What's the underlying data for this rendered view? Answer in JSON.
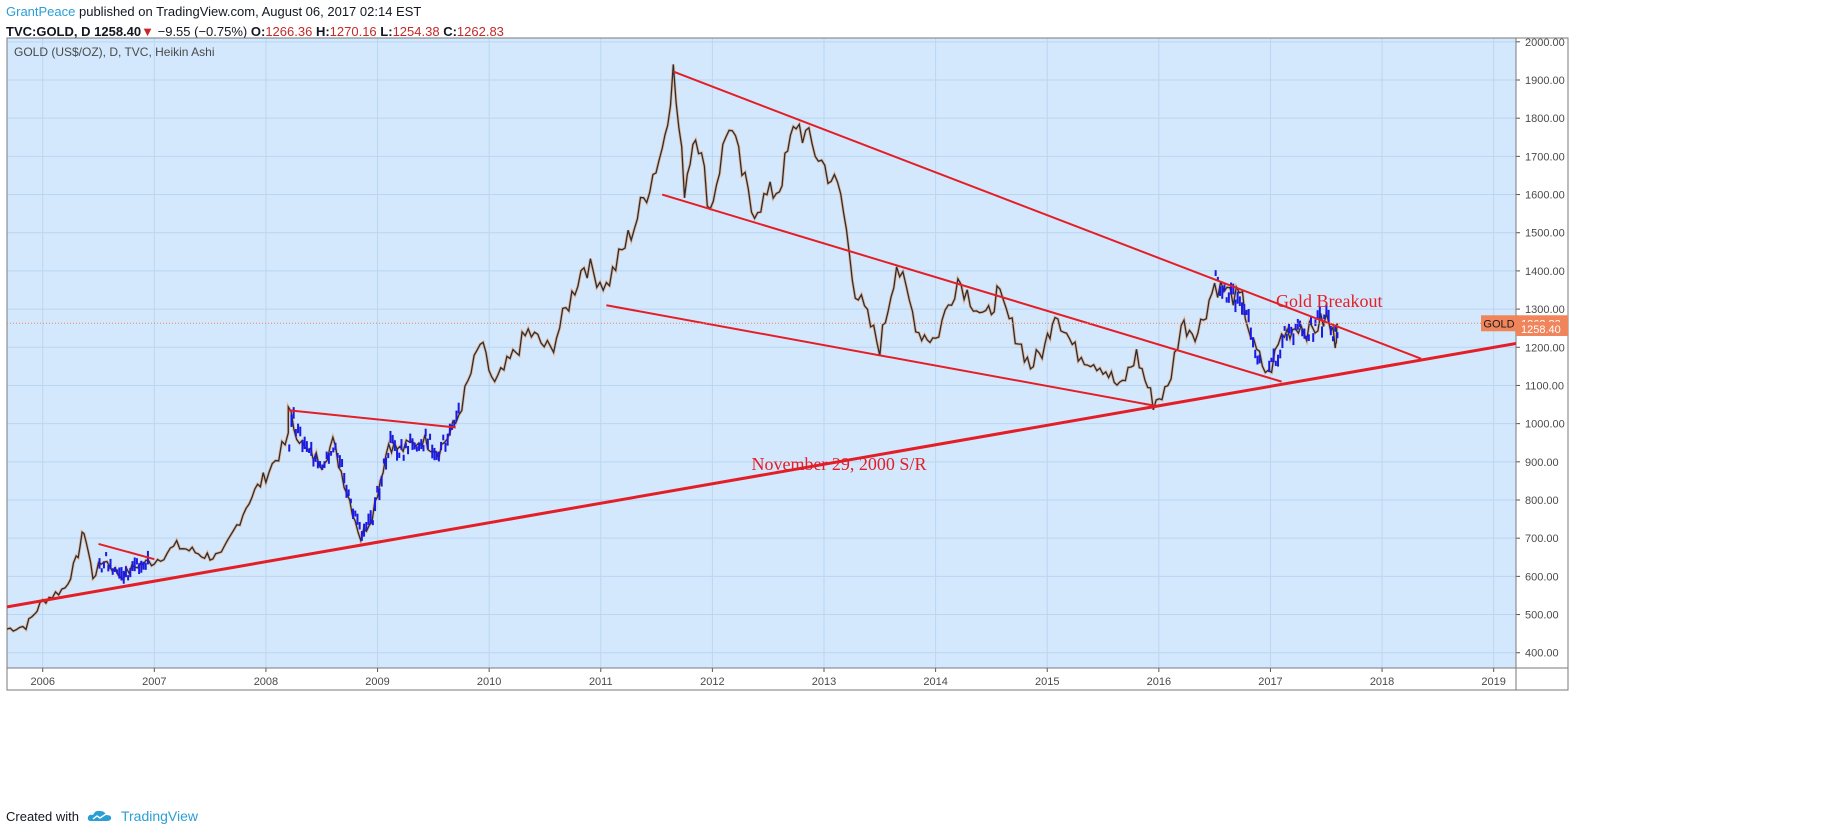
{
  "header": {
    "author": "GrantPeace",
    "published_text": " published on TradingView.com, August 06, 2017 02:14 EST",
    "symbol": "TVC:GOLD, D",
    "last": "1258.40",
    "change": "−9.55 (−0.75%)",
    "open_label": "O:",
    "open": "1266.36",
    "high_label": "H:",
    "high": "1270.16",
    "low_label": "L:",
    "low": "1254.38",
    "close_label": "C:",
    "close": "1262.83"
  },
  "footer": {
    "created_with": "Created with",
    "brand": "TradingView"
  },
  "colors": {
    "background": "#d3e8fc",
    "grid": "#b9d6f3",
    "trendline": "#e41e26",
    "price_line": "#203040",
    "heikin_blue": "#1a1ae0",
    "heikin_orange": "#ff8c3a",
    "badge": "#f0845a"
  },
  "chart_data": {
    "type": "line",
    "title": "GOLD (US$/OZ), D, TVC, Heikin Ashi",
    "series_name": "GOLD",
    "ylim": [
      360,
      2010
    ],
    "y_ticks": [
      "2000.00",
      "1900.00",
      "1800.00",
      "1700.00",
      "1600.00",
      "1500.00",
      "1400.00",
      "1300.00",
      "1200.00",
      "1100.00",
      "1000.00",
      "900.00",
      "800.00",
      "700.00",
      "600.00",
      "500.00",
      "400.00"
    ],
    "y_tick_values": [
      2000,
      1900,
      1800,
      1700,
      1600,
      1500,
      1400,
      1300,
      1200,
      1100,
      1000,
      900,
      800,
      700,
      600,
      500,
      400
    ],
    "x_range": [
      2005.68,
      2019.2
    ],
    "x_ticks": [
      "2006",
      "2007",
      "2008",
      "2009",
      "2010",
      "2011",
      "2012",
      "2013",
      "2014",
      "2015",
      "2016",
      "2017",
      "2018",
      "2019"
    ],
    "x_tick_values": [
      2006,
      2007,
      2008,
      2009,
      2010,
      2011,
      2012,
      2013,
      2014,
      2015,
      2016,
      2017,
      2018,
      2019
    ],
    "grid": true,
    "price": [
      [
        2005.68,
        462
      ],
      [
        2005.85,
        470
      ],
      [
        2006.0,
        535
      ],
      [
        2006.2,
        570
      ],
      [
        2006.3,
        640
      ],
      [
        2006.37,
        722
      ],
      [
        2006.45,
        600
      ],
      [
        2006.55,
        645
      ],
      [
        2006.7,
        600
      ],
      [
        2006.85,
        630
      ],
      [
        2007.0,
        640
      ],
      [
        2007.2,
        680
      ],
      [
        2007.45,
        655
      ],
      [
        2007.6,
        650
      ],
      [
        2007.85,
        800
      ],
      [
        2008.0,
        865
      ],
      [
        2008.2,
        960
      ],
      [
        2008.2,
        1030
      ],
      [
        2008.35,
        930
      ],
      [
        2008.5,
        900
      ],
      [
        2008.6,
        950
      ],
      [
        2008.75,
        800
      ],
      [
        2008.85,
        700
      ],
      [
        2008.95,
        760
      ],
      [
        2009.1,
        950
      ],
      [
        2009.2,
        930
      ],
      [
        2009.4,
        960
      ],
      [
        2009.55,
        930
      ],
      [
        2009.7,
        1000
      ],
      [
        2009.92,
        1210
      ],
      [
        2010.05,
        1100
      ],
      [
        2010.35,
        1240
      ],
      [
        2010.55,
        1190
      ],
      [
        2010.85,
        1420
      ],
      [
        2011.05,
        1360
      ],
      [
        2011.3,
        1520
      ],
      [
        2011.55,
        1720
      ],
      [
        2011.65,
        1920
      ],
      [
        2011.75,
        1620
      ],
      [
        2011.85,
        1780
      ],
      [
        2011.98,
        1560
      ],
      [
        2012.15,
        1790
      ],
      [
        2012.35,
        1560
      ],
      [
        2012.6,
        1620
      ],
      [
        2012.75,
        1790
      ],
      [
        2012.95,
        1700
      ],
      [
        2013.15,
        1600
      ],
      [
        2013.28,
        1350
      ],
      [
        2013.5,
        1200
      ],
      [
        2013.65,
        1420
      ],
      [
        2013.85,
        1240
      ],
      [
        2014.0,
        1220
      ],
      [
        2014.2,
        1380
      ],
      [
        2014.45,
        1270
      ],
      [
        2014.55,
        1340
      ],
      [
        2014.85,
        1150
      ],
      [
        2014.98,
        1200
      ],
      [
        2015.07,
        1300
      ],
      [
        2015.25,
        1190
      ],
      [
        2015.5,
        1150
      ],
      [
        2015.65,
        1090
      ],
      [
        2015.8,
        1180
      ],
      [
        2015.95,
        1055
      ],
      [
        2016.08,
        1090
      ],
      [
        2016.2,
        1260
      ],
      [
        2016.35,
        1240
      ],
      [
        2016.5,
        1365
      ],
      [
        2016.75,
        1320
      ],
      [
        2016.85,
        1200
      ],
      [
        2016.98,
        1125
      ],
      [
        2017.1,
        1230
      ],
      [
        2017.25,
        1260
      ],
      [
        2017.35,
        1240
      ],
      [
        2017.5,
        1275
      ],
      [
        2017.58,
        1220
      ],
      [
        2017.6,
        1258
      ]
    ],
    "trendlines": [
      {
        "name": "November 29, 2000 S/R",
        "x1": 2005.68,
        "y1": 520,
        "x2": 2019.2,
        "y2": 1210,
        "thick": true
      },
      {
        "name": "upper-channel",
        "x1": 2011.65,
        "y1": 1922,
        "x2": 2018.35,
        "y2": 1170,
        "thick": false
      },
      {
        "name": "middle-channel",
        "x1": 2011.55,
        "y1": 1600,
        "x2": 2017.1,
        "y2": 1110,
        "thick": false
      },
      {
        "name": "lower-wedge",
        "x1": 2011.05,
        "y1": 1310,
        "x2": 2016.0,
        "y2": 1045,
        "thick": false
      },
      {
        "name": "2006-consolidation",
        "x1": 2006.5,
        "y1": 685,
        "x2": 2007.0,
        "y2": 645,
        "thick": false
      },
      {
        "name": "2008-2009-resistance",
        "x1": 2008.2,
        "y1": 1035,
        "x2": 2009.7,
        "y2": 990,
        "thick": false
      }
    ],
    "heikin_segments": [
      {
        "x_start": 2006.5,
        "x_end": 2006.95
      },
      {
        "x_start": 2008.2,
        "x_end": 2009.72
      },
      {
        "x_start": 2016.5,
        "x_end": 2016.9
      },
      {
        "x_start": 2016.98,
        "x_end": 2017.6
      }
    ],
    "annotations": [
      {
        "text": "Gold Breakout",
        "x": 2017.05,
        "y": 1305
      },
      {
        "text": "November 29, 2000 S/R",
        "x": 2012.35,
        "y": 878
      }
    ],
    "last_value": 1262.83,
    "current_price": 1258.4,
    "current_price_label": "1258.40",
    "last_value_label": "1262.83"
  }
}
